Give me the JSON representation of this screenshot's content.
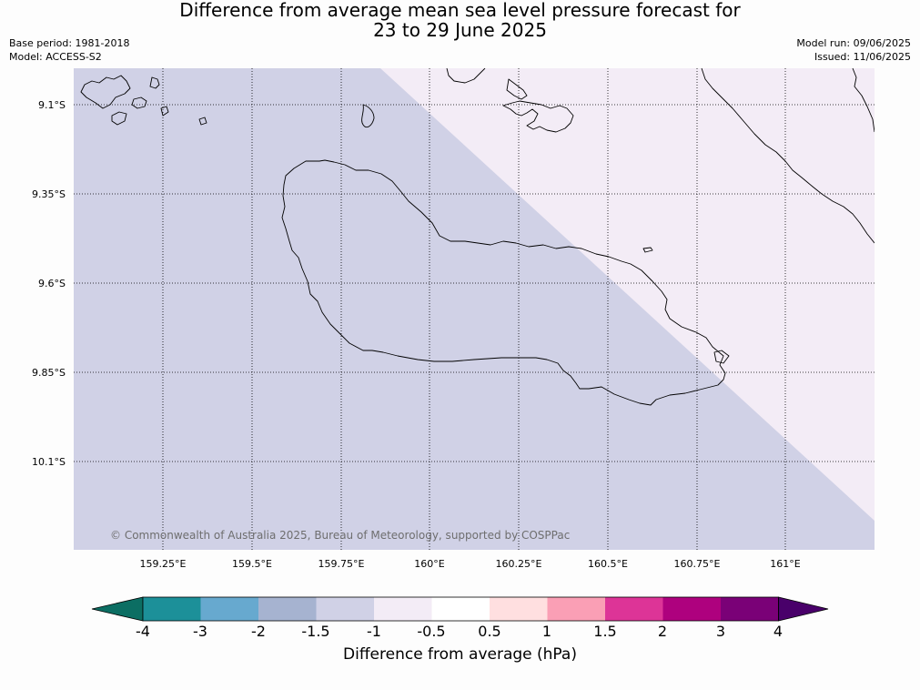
{
  "title": {
    "line1": "Difference from average mean sea level pressure forecast for",
    "line2": "23 to 29 June 2025"
  },
  "meta": {
    "base_period": "Base period: 1981-2018",
    "model": "Model: ACCESS-S2",
    "model_run": "Model run: 09/06/2025",
    "issued": "Issued: 11/06/2025"
  },
  "map": {
    "lat_labels": [
      "9.1°S",
      "9.35°S",
      "9.6°S",
      "9.85°S",
      "10.1°S"
    ],
    "lon_labels": [
      "159.25°E",
      "159.5°E",
      "159.75°E",
      "160°E",
      "160.25°E",
      "160.5°E",
      "160.75°E",
      "161°E"
    ],
    "fill_colors": {
      "band_minus1_5_to_minus1": "#d0d1e6",
      "band_minus1_to_minus0_5": "#f3ecf6"
    },
    "copyright": "© Commonwealth of Australia 2025, Bureau of Meteorology, supported by COSPPac"
  },
  "colorbar": {
    "label": "Difference from average (hPa)",
    "ticks": [
      "-4",
      "-3",
      "-2",
      "-1.5",
      "-1",
      "-0.5",
      "0.5",
      "1",
      "1.5",
      "2",
      "3",
      "4"
    ],
    "colors": [
      "#0c6e63",
      "#1c9099",
      "#67a9cf",
      "#a6b3d0",
      "#d0d1e6",
      "#f3ecf6",
      "#ffffff",
      "#ffdfe0",
      "#fa9fb5",
      "#dd3497",
      "#ae017e",
      "#7a0177",
      "#49006a"
    ]
  }
}
